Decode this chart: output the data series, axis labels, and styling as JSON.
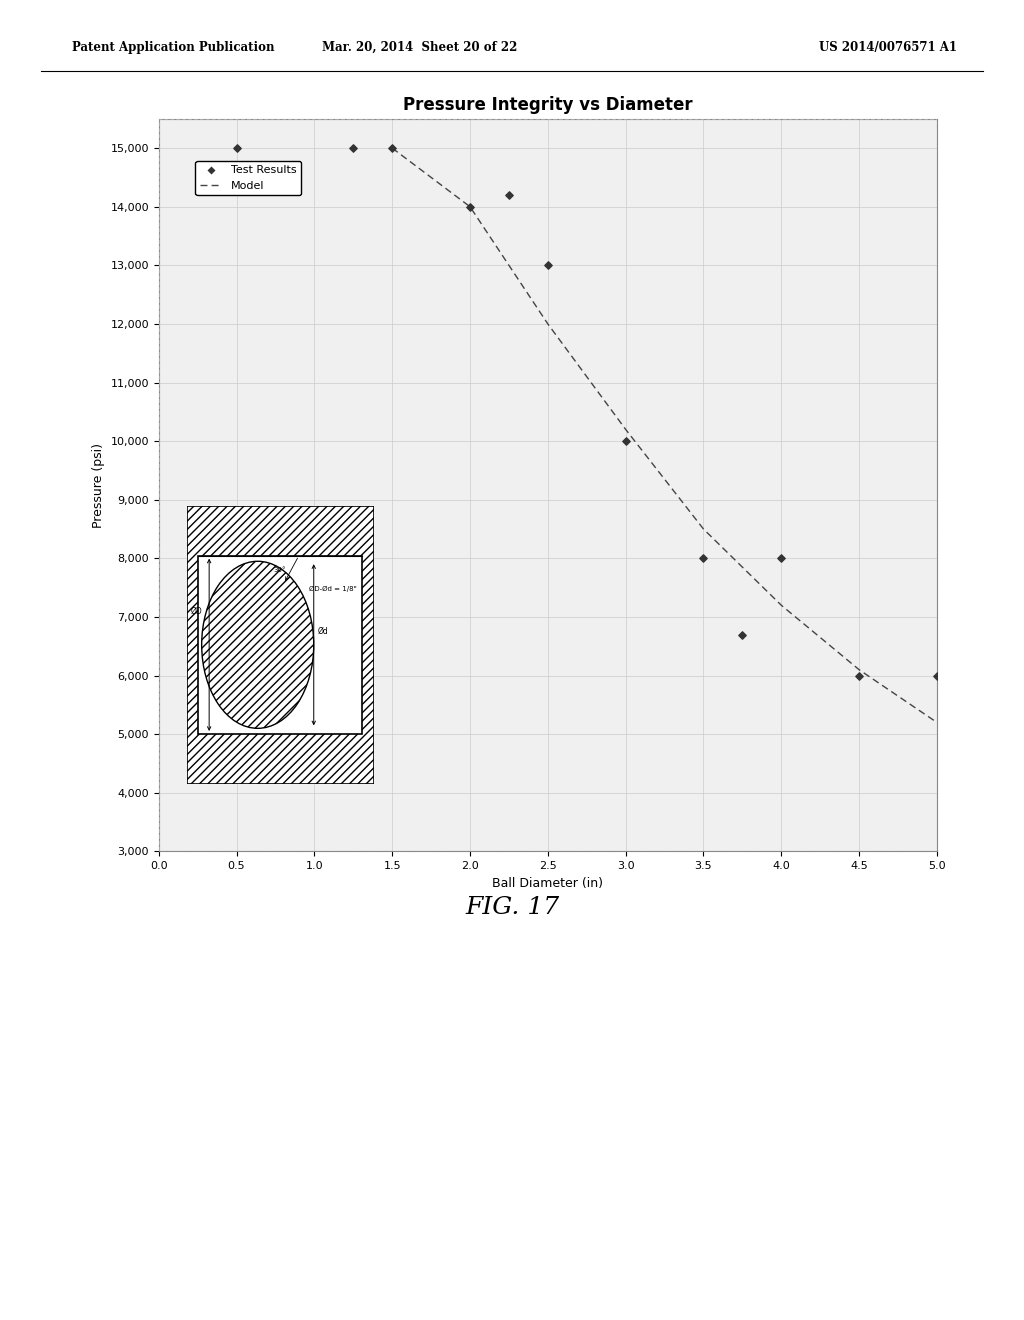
{
  "title": "Pressure Integrity vs Diameter",
  "xlabel": "Ball Diameter (in)",
  "ylabel": "Pressure (psi)",
  "xlim": [
    0,
    5
  ],
  "ylim": [
    3000,
    15500
  ],
  "xticks": [
    0,
    0.5,
    1,
    1.5,
    2,
    2.5,
    3,
    3.5,
    4,
    4.5,
    5
  ],
  "yticks": [
    3000,
    4000,
    5000,
    6000,
    7000,
    8000,
    9000,
    10000,
    11000,
    12000,
    13000,
    14000,
    15000
  ],
  "test_x": [
    0.5,
    1.25,
    1.5,
    2.0,
    2.5,
    3.0,
    3.5,
    3.75,
    4.0,
    4.5,
    5.0
  ],
  "test_y": [
    15000,
    15000,
    15000,
    14000,
    13000,
    10000,
    8000,
    6700,
    8000,
    6000,
    6000
  ],
  "test_x2": [
    2.25
  ],
  "test_y2": [
    14200
  ],
  "model_x": [
    1.5,
    2.0,
    2.5,
    3.0,
    3.5,
    4.0,
    4.5,
    5.0
  ],
  "model_y": [
    15000,
    14000,
    12000,
    10200,
    8500,
    7200,
    6100,
    5200
  ],
  "background_color": "#f0f0f0",
  "plot_bg_color": "#f0f0f0",
  "grid_color": "#cccccc",
  "title_fontsize": 12,
  "axis_label_fontsize": 9,
  "tick_fontsize": 8,
  "header_text": "Patent Application Publication",
  "header_date": "Mar. 20, 2014  Sheet 20 of 22",
  "header_patent": "US 2014/0076571 A1",
  "figure_label": "FIG. 17",
  "inset_x0_data": 0.18,
  "inset_x1_data": 1.38,
  "inset_y0_data": 4150,
  "inset_y1_data": 8900
}
